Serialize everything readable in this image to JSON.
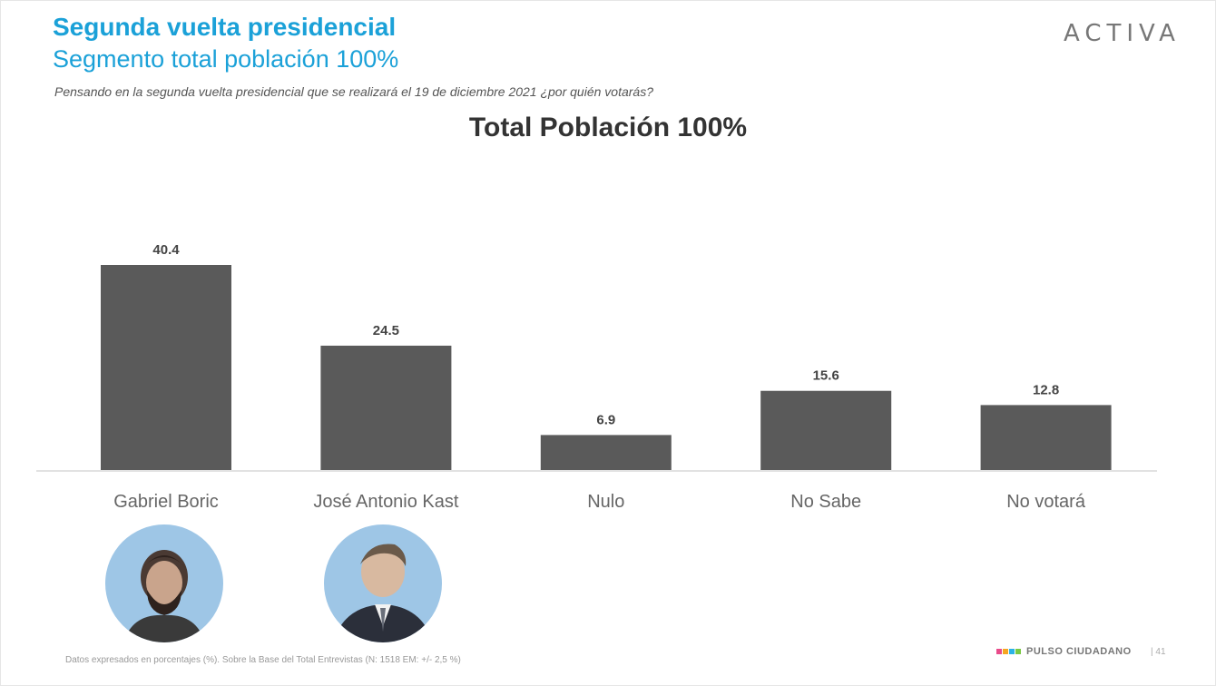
{
  "header": {
    "title": "Segunda vuelta presidencial",
    "subtitle": "Segmento total población 100%",
    "question": "Pensando en la segunda vuelta presidencial que se realizará el 19 de diciembre 2021 ¿por quién votarás?",
    "brand": "ACTIVA"
  },
  "chart_data": {
    "type": "bar",
    "title": "Total Población 100%",
    "categories": [
      "Gabriel Boric",
      "José Antonio Kast",
      "Nulo",
      "No Sabe",
      "No votará"
    ],
    "values": [
      40.4,
      24.5,
      6.9,
      15.6,
      12.8
    ],
    "value_labels": [
      "40.4",
      "24.5",
      "6.9",
      "15.6",
      "12.8"
    ],
    "xlabel": "",
    "ylabel": "",
    "ylim": [
      0,
      40.4
    ],
    "grid": false,
    "legend": "none",
    "bar_color": "#5a5a5a"
  },
  "photos": [
    {
      "icon": "candidate-portrait-boric"
    },
    {
      "icon": "candidate-portrait-kast"
    }
  ],
  "footer": {
    "note": "Datos expresados en porcentajes (%). Sobre la Base del Total Entrevistas (N: 1518  EM: +/- 2,5 %)",
    "logo_text": "PULSO CIUDADANO",
    "page": "| 41",
    "logo_colors": [
      "#e94b8a",
      "#f5a623",
      "#2bb3e5",
      "#7ac943"
    ]
  }
}
